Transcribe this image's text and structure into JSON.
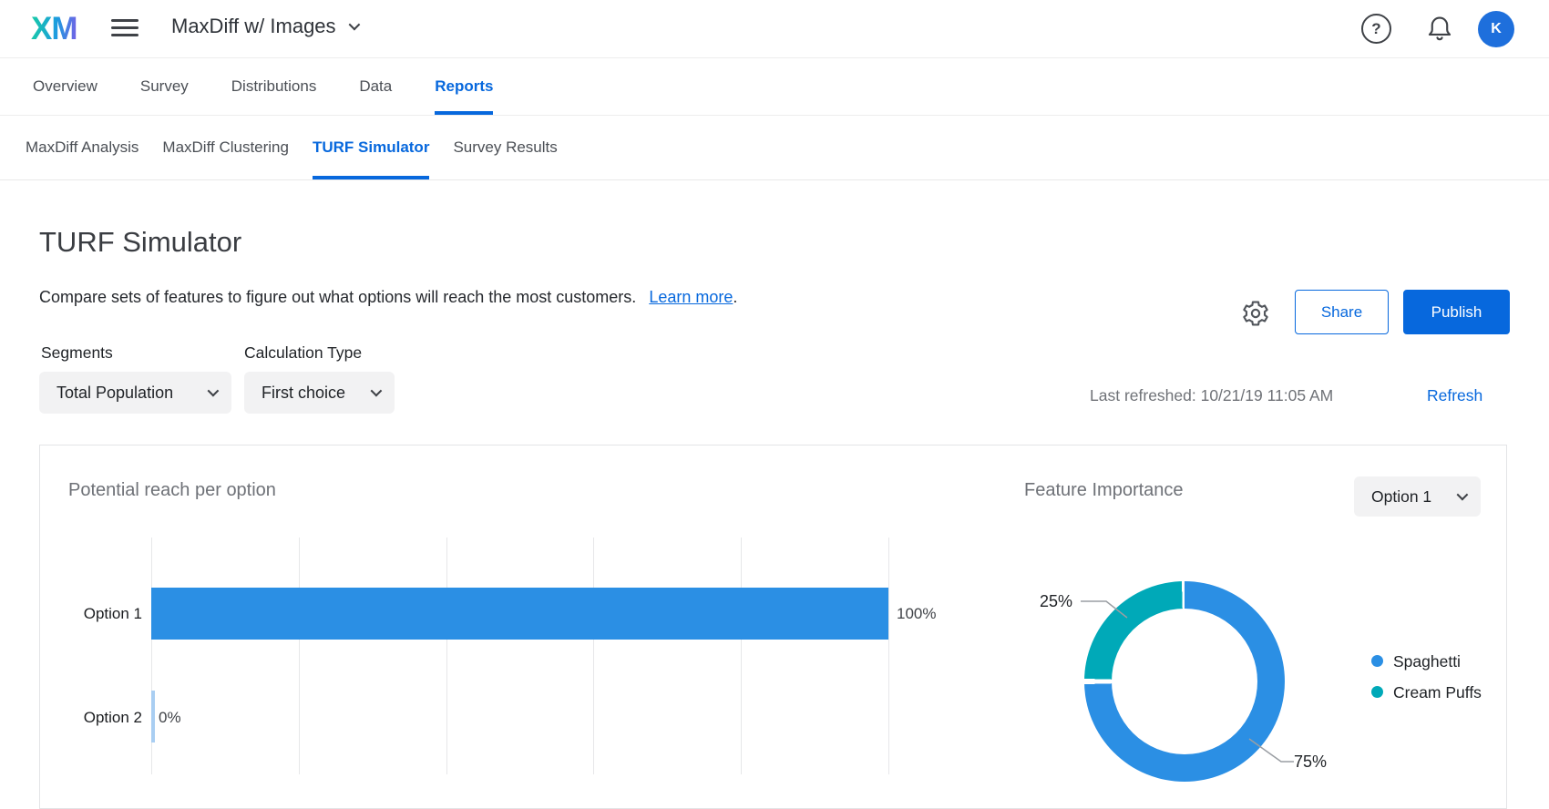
{
  "colors": {
    "accent": "#0768dd",
    "avatar_bg": "#1e6fdc",
    "bar_blue": "#2b8fe4",
    "bar_zero_blue": "#a9cef2",
    "teal": "#00a9b8"
  },
  "header": {
    "logo": "XM",
    "project_title": "MaxDiff w/ Images",
    "help_glyph": "?",
    "avatar_initial": "K"
  },
  "nav": {
    "tabs": [
      {
        "label": "Overview",
        "active": false
      },
      {
        "label": "Survey",
        "active": false
      },
      {
        "label": "Distributions",
        "active": false
      },
      {
        "label": "Data",
        "active": false
      },
      {
        "label": "Reports",
        "active": true
      }
    ]
  },
  "subnav": {
    "tabs": [
      {
        "label": "MaxDiff Analysis",
        "active": false
      },
      {
        "label": "MaxDiff Clustering",
        "active": false
      },
      {
        "label": "TURF Simulator",
        "active": true
      },
      {
        "label": "Survey Results",
        "active": false
      }
    ]
  },
  "page": {
    "title": "TURF Simulator",
    "description": "Compare sets of features to figure out what options will reach the most customers.",
    "learn_more_label": "Learn more",
    "period": ".",
    "share_label": "Share",
    "publish_label": "Publish"
  },
  "controls": {
    "segments_label": "Segments",
    "segments_value": "Total Population",
    "calc_type_label": "Calculation Type",
    "calc_type_value": "First choice",
    "last_refreshed": "Last refreshed: 10/21/19 11:05 AM",
    "refresh_label": "Refresh"
  },
  "chart_data": [
    {
      "type": "bar",
      "orientation": "horizontal",
      "title": "Potential reach per option",
      "categories": [
        "Option 1",
        "Option 2"
      ],
      "values": [
        100,
        0
      ],
      "value_labels": [
        "100%",
        "0%"
      ],
      "xlim": [
        0,
        100
      ],
      "x_ticks": [
        0,
        20,
        40,
        60,
        80,
        100
      ],
      "grid": true,
      "bar_color": "#2b8fe4",
      "zero_bar_color": "#a9cef2"
    },
    {
      "type": "pie",
      "subtype": "donut",
      "title": "Feature Importance",
      "selected_option": "Option 1",
      "labels": [
        "Spaghetti",
        "Cream Puffs"
      ],
      "values": [
        75,
        25
      ],
      "value_labels": [
        "75%",
        "25%"
      ],
      "colors": [
        "#2b8fe4",
        "#00a9b8"
      ],
      "legend_position": "right"
    }
  ]
}
